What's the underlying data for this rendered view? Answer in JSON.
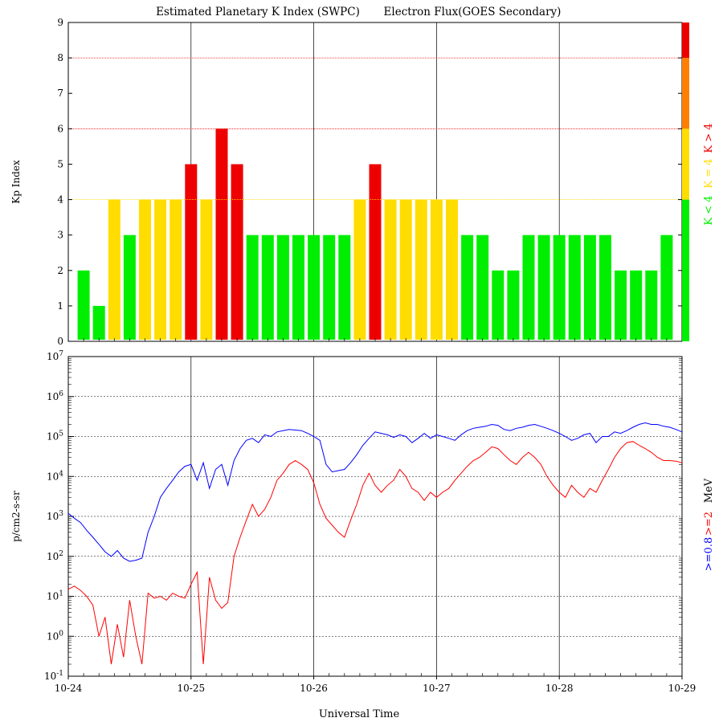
{
  "titles": {
    "kp": "Estimated Planetary K Index (SWPC)",
    "flux": "Electron Flux(GOES Secondary)"
  },
  "xlabel": "Universal Time",
  "colors": {
    "green": "#00ee00",
    "yellow": "#ffdd00",
    "red": "#ee0000",
    "orange": "#ff7f00",
    "blue_series": "#0000ff",
    "red_series": "#ff0000",
    "legend_blue": "#0000ff",
    "legend_red": "#ff0000",
    "legend_black": "#000000"
  },
  "kp_legend": {
    "green_label": "K < 4",
    "yellow_label": "K = 4",
    "red_label": "K > 4"
  },
  "flux_legend": {
    "blue_label": ">=0.8",
    "red_label": ">=2",
    "unit_label": "MeV"
  },
  "chart_data": [
    {
      "type": "bar",
      "ylabel": "Kp Index",
      "ylim": [
        0,
        9
      ],
      "y_ticks": [
        "0",
        "1",
        "2",
        "3",
        "4",
        "5",
        "6",
        "7",
        "8",
        "9"
      ],
      "x_ticks": [
        "10-24",
        "10-25",
        "10-26",
        "10-27",
        "10-28",
        "10-29"
      ],
      "bar_interval_hours": 3,
      "values": [
        2,
        1,
        4,
        3,
        4,
        4,
        4,
        5,
        4,
        6,
        5,
        3,
        3,
        3,
        3,
        3,
        3,
        3,
        4,
        5,
        4,
        4,
        4,
        4,
        4,
        3,
        3,
        2,
        2,
        3,
        3,
        3,
        3,
        3,
        3,
        2,
        2,
        2,
        3
      ],
      "reference_lines": [
        4,
        6,
        8
      ],
      "grid": true
    },
    {
      "type": "line",
      "ylabel": "p/cm2-s-sr",
      "y_scale": "log",
      "ylim": [
        0.1,
        10000000
      ],
      "y_ticks": [
        "10-1",
        "100",
        "101",
        "102",
        "103",
        "104",
        "105",
        "106",
        "107"
      ],
      "x_ticks": [
        "10-24",
        "10-25",
        "10-26",
        "10-27",
        "10-28",
        "10-29"
      ],
      "grid": true,
      "series": [
        {
          "name": ">=0.8",
          "x": [
            0,
            0.05,
            0.1,
            0.15,
            0.2,
            0.25,
            0.3,
            0.35,
            0.4,
            0.45,
            0.5,
            0.55,
            0.6,
            0.65,
            0.7,
            0.75,
            0.8,
            0.85,
            0.9,
            0.95,
            1.0,
            1.05,
            1.1,
            1.15,
            1.2,
            1.25,
            1.3,
            1.35,
            1.4,
            1.45,
            1.5,
            1.55,
            1.6,
            1.65,
            1.7,
            1.75,
            1.8,
            1.85,
            1.9,
            1.95,
            2.0,
            2.05,
            2.1,
            2.15,
            2.2,
            2.25,
            2.3,
            2.35,
            2.4,
            2.45,
            2.5,
            2.55,
            2.6,
            2.65,
            2.7,
            2.75,
            2.8,
            2.85,
            2.9,
            2.95,
            3.0,
            3.05,
            3.1,
            3.15,
            3.2,
            3.25,
            3.3,
            3.35,
            3.4,
            3.45,
            3.5,
            3.55,
            3.6,
            3.65,
            3.7,
            3.75,
            3.8,
            3.85,
            3.9,
            3.95,
            4.0,
            4.05,
            4.1,
            4.15,
            4.2,
            4.25,
            4.3,
            4.35,
            4.4,
            4.45,
            4.5,
            4.55,
            4.6,
            4.65,
            4.7,
            4.75,
            4.8,
            4.85,
            4.9,
            4.95,
            5.0
          ],
          "values": [
            1200,
            900,
            700,
            450,
            300,
            200,
            130,
            100,
            140,
            90,
            75,
            80,
            90,
            400,
            1000,
            3000,
            5000,
            8000,
            13000,
            18000,
            20000,
            8000,
            22000,
            5000,
            15000,
            20000,
            6000,
            25000,
            50000,
            80000,
            90000,
            70000,
            110000,
            100000,
            130000,
            140000,
            150000,
            145000,
            140000,
            120000,
            100000,
            80000,
            20000,
            13000,
            14000,
            15000,
            22000,
            35000,
            60000,
            90000,
            130000,
            120000,
            110000,
            95000,
            110000,
            100000,
            70000,
            90000,
            120000,
            90000,
            110000,
            100000,
            90000,
            80000,
            110000,
            140000,
            160000,
            170000,
            180000,
            200000,
            190000,
            150000,
            140000,
            160000,
            170000,
            190000,
            200000,
            180000,
            160000,
            140000,
            120000,
            100000,
            80000,
            90000,
            110000,
            120000,
            70000,
            100000,
            100000,
            130000,
            120000,
            140000,
            170000,
            200000,
            220000,
            200000,
            200000,
            180000,
            170000,
            150000,
            130000
          ],
          "color": "#0000ff"
        },
        {
          "name": ">=2",
          "x": [
            0,
            0.05,
            0.1,
            0.15,
            0.2,
            0.25,
            0.3,
            0.35,
            0.4,
            0.45,
            0.5,
            0.55,
            0.6,
            0.65,
            0.7,
            0.75,
            0.8,
            0.85,
            0.9,
            0.95,
            1.0,
            1.05,
            1.1,
            1.15,
            1.2,
            1.25,
            1.3,
            1.35,
            1.4,
            1.45,
            1.5,
            1.55,
            1.6,
            1.65,
            1.7,
            1.75,
            1.8,
            1.85,
            1.9,
            1.95,
            2.0,
            2.05,
            2.1,
            2.15,
            2.2,
            2.25,
            2.3,
            2.35,
            2.4,
            2.45,
            2.5,
            2.55,
            2.6,
            2.65,
            2.7,
            2.75,
            2.8,
            2.85,
            2.9,
            2.95,
            3.0,
            3.05,
            3.1,
            3.15,
            3.2,
            3.25,
            3.3,
            3.35,
            3.4,
            3.45,
            3.5,
            3.55,
            3.6,
            3.65,
            3.7,
            3.75,
            3.8,
            3.85,
            3.9,
            3.95,
            4.0,
            4.05,
            4.1,
            4.15,
            4.2,
            4.25,
            4.3,
            4.35,
            4.4,
            4.45,
            4.5,
            4.55,
            4.6,
            4.65,
            4.7,
            4.75,
            4.8,
            4.85,
            4.9,
            4.95,
            5.0
          ],
          "values": [
            15,
            18,
            14,
            10,
            6,
            1,
            3,
            0.2,
            2,
            0.3,
            8,
            1,
            0.2,
            12,
            9,
            10,
            8,
            12,
            10,
            9,
            20,
            40,
            0.2,
            30,
            8,
            5,
            7,
            100,
            300,
            800,
            2000,
            1000,
            1500,
            3000,
            8000,
            12000,
            20000,
            25000,
            20000,
            15000,
            7000,
            2000,
            900,
            600,
            400,
            300,
            800,
            2000,
            6000,
            12000,
            6000,
            4000,
            6000,
            8000,
            15000,
            10000,
            5000,
            4000,
            2500,
            4000,
            3000,
            4000,
            5000,
            8000,
            12000,
            18000,
            25000,
            30000,
            40000,
            55000,
            50000,
            35000,
            25000,
            20000,
            30000,
            40000,
            30000,
            20000,
            10000,
            6000,
            4000,
            3000,
            6000,
            4000,
            3000,
            5000,
            4000,
            8000,
            15000,
            30000,
            50000,
            70000,
            75000,
            60000,
            50000,
            40000,
            30000,
            25000,
            25000,
            24000,
            22000
          ],
          "color": "#ff0000"
        }
      ]
    }
  ]
}
